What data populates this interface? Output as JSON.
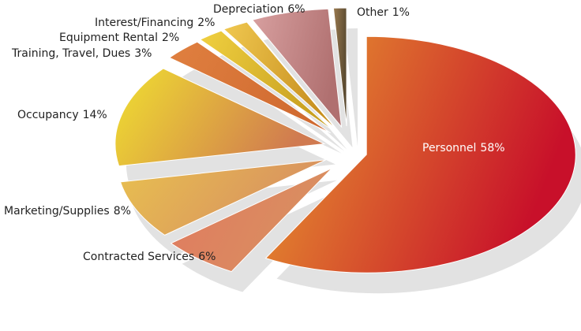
{
  "chart_data": {
    "type": "pie",
    "categories": [
      "Personnel",
      "Contracted Services",
      "Marketing/Supplies",
      "Occupancy",
      "Training, Travel, Dues",
      "Equipment Rental",
      "Interest/Financing",
      "Depreciation",
      "Other"
    ],
    "values": [
      58,
      6,
      8,
      14,
      3,
      2,
      2,
      6,
      1
    ],
    "value_labels": [
      "58%",
      "6%",
      "8%",
      "14%",
      "3%",
      "2%",
      "2%",
      "6%",
      "1%"
    ],
    "colors": [
      "#d9532a",
      "#d9744f",
      "#e0b04a",
      "#e8c03a",
      "#d8763a",
      "#d9b52a",
      "#ffffff",
      "#c98a8a",
      "#7a5a3a",
      "#c0182a"
    ]
  }
}
